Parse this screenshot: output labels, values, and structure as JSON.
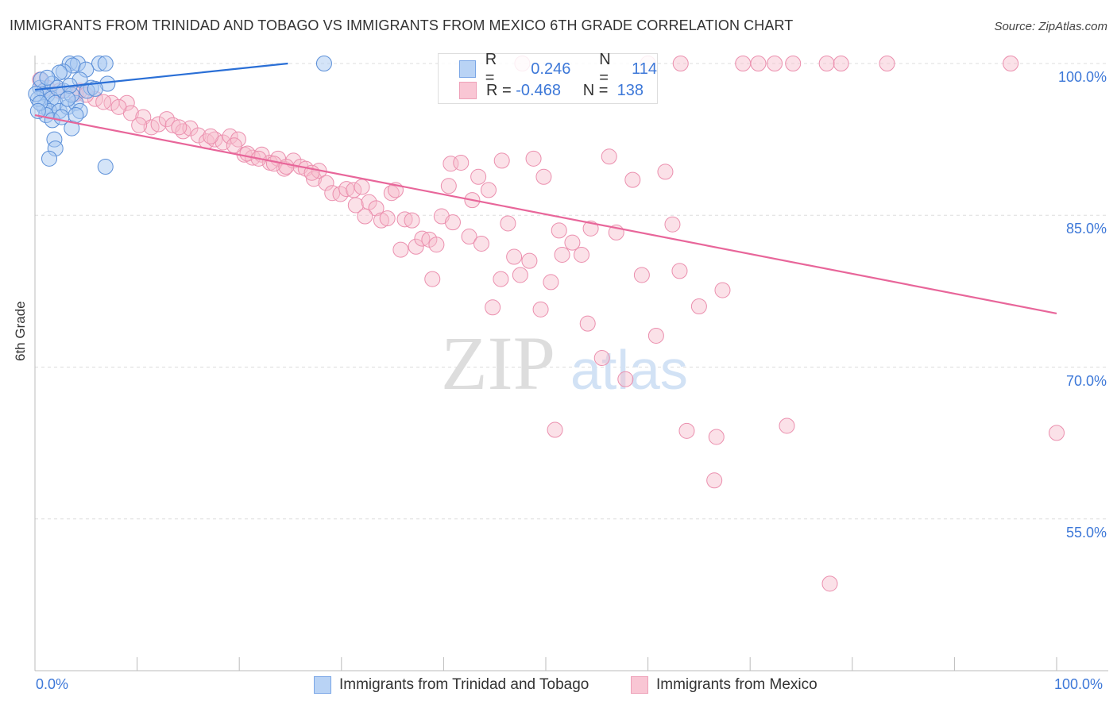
{
  "title": "IMMIGRANTS FROM TRINIDAD AND TOBAGO VS IMMIGRANTS FROM MEXICO 6TH GRADE CORRELATION CHART",
  "source": "Source: ZipAtlas.com",
  "watermark": "ZIPatlas",
  "colors": {
    "blue": "#2a6fd6",
    "blue_fill": "#a9c9f2",
    "pink": "#e8669a",
    "pink_fill": "#f7bccd",
    "tick": "#3d78d8"
  },
  "legend": {
    "rows": [
      {
        "r_label": "R =",
        "r": "0.246",
        "n_label": "N =",
        "n": "114"
      },
      {
        "r_label": "R =",
        "r": "-0.468",
        "n_label": "N =",
        "n": "138"
      }
    ]
  },
  "chart_data": {
    "type": "scatter",
    "title": "IMMIGRANTS FROM TRINIDAD AND TOBAGO VS IMMIGRANTS FROM MEXICO 6TH GRADE CORRELATION CHART",
    "xlabel": "",
    "ylabel": "6th Grade",
    "xlim": [
      0,
      100
    ],
    "ylim": [
      40,
      100
    ],
    "x_ticks": [
      "0.0%",
      "100.0%"
    ],
    "y_ticks": [
      {
        "v": 100,
        "label": "100.0%"
      },
      {
        "v": 85,
        "label": "85.0%"
      },
      {
        "v": 70,
        "label": "70.0%"
      },
      {
        "v": 55,
        "label": "55.0%"
      }
    ],
    "grid": true,
    "legend_position": "bottom",
    "series": [
      {
        "name": "Immigrants from Trinidad and Tobago",
        "color": "blue",
        "r": 0.246,
        "n": 114,
        "trend": {
          "x0": 0,
          "y0": 97.4,
          "slope": 0.105,
          "cap": 100
        },
        "points": [
          [
            28.3,
            100
          ],
          [
            3.4,
            100
          ],
          [
            4.2,
            100
          ],
          [
            6.3,
            100
          ],
          [
            6.9,
            100
          ],
          [
            3.7,
            99.8
          ],
          [
            2.8,
            99.2
          ],
          [
            5.0,
            99.4
          ],
          [
            2.4,
            99.1
          ],
          [
            7.1,
            98.0
          ],
          [
            0.5,
            97.6
          ],
          [
            0.9,
            97.3
          ],
          [
            1.2,
            96.9
          ],
          [
            1.6,
            96.5
          ],
          [
            2.0,
            96.1
          ],
          [
            0.9,
            95.7
          ],
          [
            1.4,
            95.3
          ],
          [
            2.4,
            95.3
          ],
          [
            3.2,
            95.7
          ],
          [
            4.0,
            96.1
          ],
          [
            4.4,
            95.3
          ],
          [
            5.5,
            97.6
          ],
          [
            1.1,
            94.9
          ],
          [
            1.7,
            94.4
          ],
          [
            2.6,
            94.7
          ],
          [
            3.6,
            93.6
          ],
          [
            1.9,
            92.5
          ],
          [
            2.0,
            91.6
          ],
          [
            1.4,
            90.6
          ],
          [
            6.9,
            89.8
          ],
          [
            0.3,
            96.5
          ],
          [
            0.6,
            98.4
          ],
          [
            1.7,
            98.0
          ],
          [
            2.8,
            97.3
          ],
          [
            3.6,
            96.9
          ],
          [
            4.4,
            98.4
          ],
          [
            5.1,
            97.3
          ],
          [
            5.9,
            97.5
          ],
          [
            0.1,
            97.0
          ],
          [
            0.5,
            96.1
          ],
          [
            2.2,
            97.6
          ],
          [
            3.4,
            97.8
          ],
          [
            1.2,
            98.6
          ],
          [
            3.2,
            96.5
          ],
          [
            4.0,
            94.9
          ],
          [
            0.3,
            95.3
          ]
        ]
      },
      {
        "name": "Immigrants from Mexico",
        "color": "pink",
        "r": -0.468,
        "n": 138,
        "trend": {
          "x0": 0,
          "y0": 94.9,
          "x1": 100,
          "y1": 75.3
        },
        "points": [
          [
            47.7,
            100
          ],
          [
            60,
            100
          ],
          [
            63.2,
            100
          ],
          [
            69.3,
            100
          ],
          [
            70.8,
            100
          ],
          [
            72.4,
            100
          ],
          [
            74.2,
            100
          ],
          [
            77.5,
            100
          ],
          [
            78.9,
            100
          ],
          [
            83.4,
            100
          ],
          [
            95.5,
            100
          ],
          [
            40.7,
            90.1
          ],
          [
            41.7,
            90.2
          ],
          [
            45.7,
            90.4
          ],
          [
            48.8,
            90.6
          ],
          [
            56.2,
            90.8
          ],
          [
            61.7,
            89.3
          ],
          [
            49.8,
            88.8
          ],
          [
            43.4,
            88.8
          ],
          [
            44.4,
            87.5
          ],
          [
            40.5,
            87.9
          ],
          [
            58.5,
            88.5
          ],
          [
            42.8,
            86.5
          ],
          [
            39.8,
            84.9
          ],
          [
            40.9,
            84.3
          ],
          [
            46.3,
            84.2
          ],
          [
            62.4,
            84.1
          ],
          [
            51.3,
            83.5
          ],
          [
            54.4,
            83.7
          ],
          [
            56.9,
            83.3
          ],
          [
            42.5,
            82.9
          ],
          [
            43.7,
            82.2
          ],
          [
            52.6,
            82.3
          ],
          [
            51.6,
            81.1
          ],
          [
            53.5,
            81.1
          ],
          [
            46.9,
            80.9
          ],
          [
            48.4,
            80.5
          ],
          [
            59.4,
            79.1
          ],
          [
            63.1,
            79.5
          ],
          [
            47.5,
            79.1
          ],
          [
            45.6,
            78.7
          ],
          [
            50.5,
            78.4
          ],
          [
            38.9,
            78.7
          ],
          [
            67.3,
            77.6
          ],
          [
            65.0,
            76.0
          ],
          [
            44.8,
            75.9
          ],
          [
            49.5,
            75.7
          ],
          [
            54.1,
            74.3
          ],
          [
            60.8,
            73.1
          ],
          [
            55.5,
            70.9
          ],
          [
            57.8,
            68.8
          ],
          [
            50.9,
            63.8
          ],
          [
            63.8,
            63.7
          ],
          [
            66.7,
            63.1
          ],
          [
            73.6,
            64.2
          ],
          [
            100,
            63.5
          ],
          [
            66.5,
            58.8
          ],
          [
            77.8,
            48.6
          ],
          [
            0.5,
            98.4
          ],
          [
            1.2,
            97.6
          ],
          [
            2.4,
            97.3
          ],
          [
            4.4,
            97.3
          ],
          [
            5.9,
            96.5
          ],
          [
            7.5,
            96.1
          ],
          [
            9.0,
            96.1
          ],
          [
            9.4,
            95.1
          ],
          [
            10.6,
            94.7
          ],
          [
            11.4,
            93.7
          ],
          [
            12.1,
            94.0
          ],
          [
            12.9,
            94.5
          ],
          [
            13.5,
            93.9
          ],
          [
            14.5,
            93.3
          ],
          [
            15.2,
            93.6
          ],
          [
            16.0,
            92.9
          ],
          [
            16.8,
            92.3
          ],
          [
            17.6,
            92.5
          ],
          [
            18.4,
            92.2
          ],
          [
            19.1,
            92.8
          ],
          [
            19.9,
            92.5
          ],
          [
            20.5,
            91.0
          ],
          [
            21.3,
            90.7
          ],
          [
            22.2,
            91.0
          ],
          [
            23.0,
            90.2
          ],
          [
            23.8,
            90.6
          ],
          [
            24.4,
            89.6
          ],
          [
            25.3,
            90.4
          ],
          [
            26.0,
            89.8
          ],
          [
            26.5,
            89.6
          ],
          [
            27.3,
            88.6
          ],
          [
            27.8,
            89.4
          ],
          [
            28.5,
            88.2
          ],
          [
            29.1,
            87.2
          ],
          [
            29.9,
            87.1
          ],
          [
            30.5,
            87.6
          ],
          [
            31.2,
            87.5
          ],
          [
            32.0,
            87.8
          ],
          [
            31.4,
            86.0
          ],
          [
            32.7,
            86.3
          ],
          [
            33.4,
            85.7
          ],
          [
            32.3,
            84.9
          ],
          [
            33.9,
            84.5
          ],
          [
            34.9,
            87.2
          ],
          [
            35.3,
            87.5
          ],
          [
            36.2,
            84.6
          ],
          [
            36.9,
            84.5
          ],
          [
            35.8,
            81.6
          ],
          [
            37.3,
            81.9
          ],
          [
            37.9,
            82.7
          ],
          [
            38.6,
            82.6
          ],
          [
            39.3,
            82.1
          ],
          [
            34.5,
            84.7
          ],
          [
            4.0,
            97.0
          ],
          [
            5.0,
            96.9
          ],
          [
            6.7,
            96.2
          ],
          [
            8.2,
            95.7
          ],
          [
            10.2,
            93.9
          ],
          [
            14.1,
            93.7
          ],
          [
            17.2,
            92.8
          ],
          [
            19.5,
            91.9
          ],
          [
            20.8,
            91.1
          ],
          [
            21.9,
            90.6
          ],
          [
            23.4,
            90.1
          ],
          [
            24.6,
            89.8
          ],
          [
            27.1,
            89.2
          ]
        ]
      }
    ]
  }
}
